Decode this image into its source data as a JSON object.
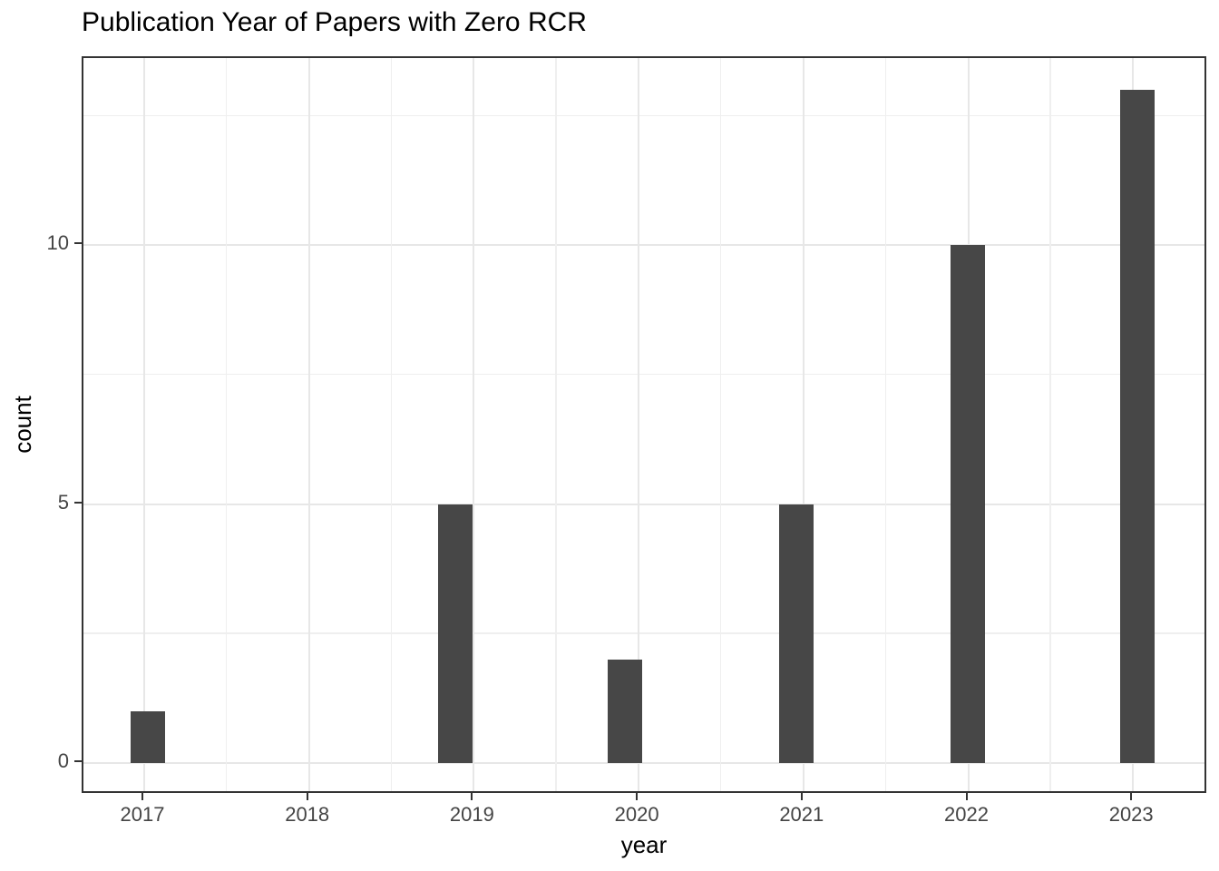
{
  "chart_data": {
    "type": "bar",
    "title": "Publication Year of Papers with Zero RCR",
    "xlabel": "year",
    "ylabel": "count",
    "categories": [
      "2017",
      "2018",
      "2019",
      "2020",
      "2021",
      "2022",
      "2023"
    ],
    "values": [
      1,
      0,
      5,
      2,
      5,
      10,
      13
    ],
    "y_ticks": [
      0,
      5,
      10
    ],
    "y_minor_gridlines": [
      2.5,
      7.5,
      12.5
    ],
    "ylim": [
      -0.65,
      13.6
    ],
    "grid": "on",
    "legend": "none",
    "colors": {
      "bar_fill": "#474747",
      "grid_major": "#e7e7e7",
      "grid_minor": "#efefef",
      "panel_border": "#333333",
      "tick_mark": "#333333",
      "axis_text": "#444444",
      "title_text": "#000000"
    }
  }
}
